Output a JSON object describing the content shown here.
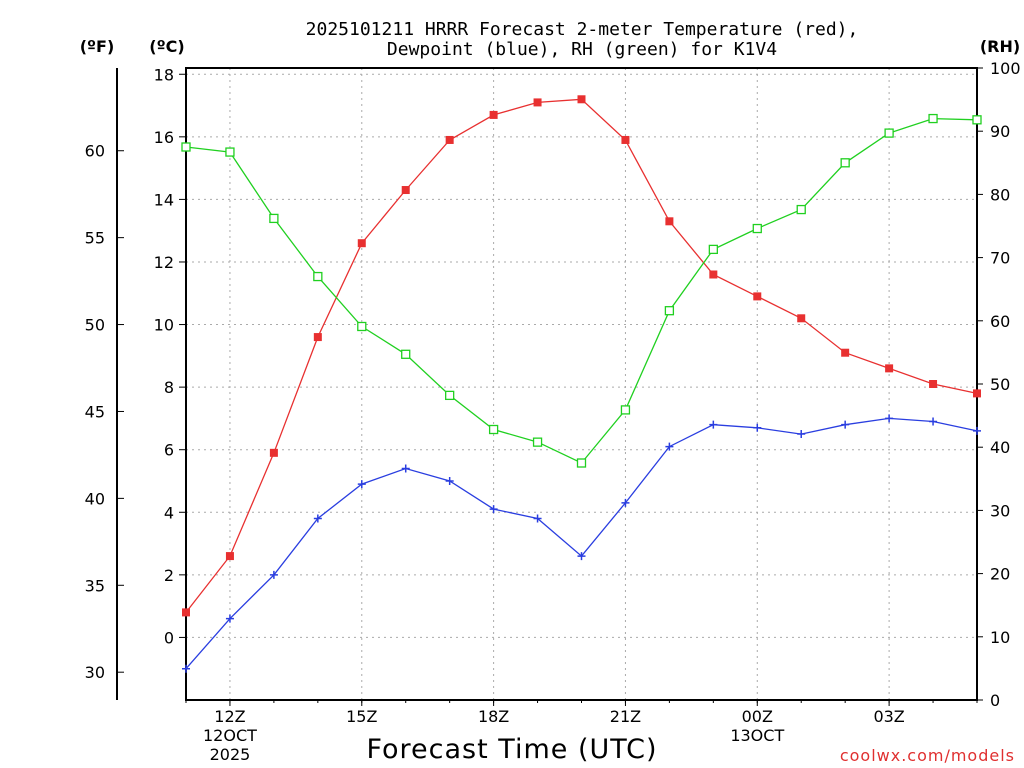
{
  "chart_data": {
    "type": "line",
    "title_line1": "2025101211 HRRR Forecast 2-meter Temperature (red),",
    "title_line2": "Dewpoint (blue), RH (green) for K1V4",
    "xlabel": "Forecast Time (UTC)",
    "credit": "coolwx.com/models",
    "units": {
      "fahrenheit": "(ºF)",
      "celsius": "(ºC)",
      "rh": "(RH)"
    },
    "x_range": [
      11,
      29
    ],
    "celsius_range": [
      -2,
      18.2
    ],
    "rh_range": [
      0,
      100
    ],
    "grid": true,
    "x_ticks": [
      {
        "x": 12,
        "label": "12Z",
        "sub1": "12OCT",
        "sub2": "2025"
      },
      {
        "x": 15,
        "label": "15Z",
        "sub1": "",
        "sub2": ""
      },
      {
        "x": 18,
        "label": "18Z",
        "sub1": "",
        "sub2": ""
      },
      {
        "x": 21,
        "label": "21Z",
        "sub1": "",
        "sub2": ""
      },
      {
        "x": 24,
        "label": "00Z",
        "sub1": "13OCT",
        "sub2": ""
      },
      {
        "x": 27,
        "label": "03Z",
        "sub1": "",
        "sub2": ""
      }
    ],
    "celsius_ticks": [
      0,
      2,
      4,
      6,
      8,
      10,
      12,
      14,
      16,
      18
    ],
    "fahrenheit_ticks": [
      30,
      35,
      40,
      45,
      50,
      55,
      60
    ],
    "rh_ticks": [
      0,
      10,
      20,
      30,
      40,
      50,
      60,
      70,
      80,
      90,
      100
    ],
    "x": [
      11,
      12,
      13,
      14,
      15,
      16,
      17,
      18,
      19,
      20,
      21,
      22,
      23,
      24,
      25,
      26,
      27,
      28,
      29
    ],
    "series": [
      {
        "name": "Temperature",
        "axis": "celsius",
        "color": "#e83030",
        "marker": "filled-square",
        "values": [
          0.8,
          2.6,
          5.9,
          9.6,
          12.6,
          14.3,
          15.9,
          16.7,
          17.1,
          17.2,
          15.9,
          13.3,
          11.6,
          10.9,
          10.2,
          9.1,
          8.6,
          8.1,
          7.8
        ]
      },
      {
        "name": "Dewpoint",
        "axis": "celsius",
        "color": "#2a3ee0",
        "marker": "plus",
        "values": [
          -1.0,
          0.6,
          2.0,
          3.8,
          4.9,
          5.4,
          5.0,
          4.1,
          3.8,
          2.6,
          4.3,
          6.1,
          6.8,
          6.7,
          6.5,
          6.8,
          7.0,
          6.9,
          6.6
        ]
      },
      {
        "name": "RH",
        "axis": "rh",
        "color": "#20d020",
        "marker": "open-square",
        "values": [
          87.5,
          86.7,
          76.2,
          67.0,
          59.1,
          54.7,
          48.2,
          42.8,
          40.8,
          37.5,
          45.9,
          61.6,
          71.3,
          74.6,
          77.6,
          85.0,
          89.7,
          92.0,
          91.8
        ]
      }
    ]
  }
}
